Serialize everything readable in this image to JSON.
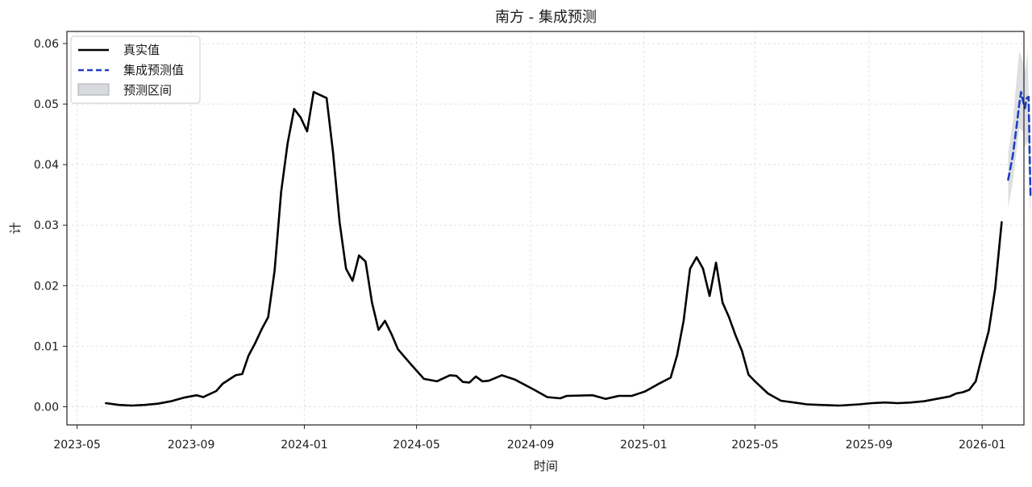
{
  "chart_data": {
    "type": "line",
    "title": "南方 - 集成预测",
    "xlabel": "时间",
    "ylabel": "计",
    "ylim": [
      -0.003,
      0.062
    ],
    "xlim": [
      "2023-04-20",
      "2026-02-15"
    ],
    "grid": true,
    "legend_position": "top-left",
    "y_ticks": [
      {
        "value": 0.0,
        "label": "0.00"
      },
      {
        "value": 0.01,
        "label": "0.01"
      },
      {
        "value": 0.02,
        "label": "0.02"
      },
      {
        "value": 0.03,
        "label": "0.03"
      },
      {
        "value": 0.04,
        "label": "0.04"
      },
      {
        "value": 0.05,
        "label": "0.05"
      },
      {
        "value": 0.06,
        "label": "0.06"
      }
    ],
    "x_ticks": [
      {
        "date": "2023-05-01",
        "label": "2023-05"
      },
      {
        "date": "2023-09-01",
        "label": "2023-09"
      },
      {
        "date": "2024-01-01",
        "label": "2024-01"
      },
      {
        "date": "2024-05-01",
        "label": "2024-05"
      },
      {
        "date": "2024-09-01",
        "label": "2024-09"
      },
      {
        "date": "2025-01-01",
        "label": "2025-01"
      },
      {
        "date": "2025-05-01",
        "label": "2025-05"
      },
      {
        "date": "2025-09-01",
        "label": "2025-09"
      },
      {
        "date": "2026-01-01",
        "label": "2026-01"
      }
    ],
    "series": [
      {
        "name": "真实值",
        "color": "#000000",
        "style": "solid",
        "points": [
          [
            "2023-06-01",
            0.0006
          ],
          [
            "2023-06-15",
            0.0003
          ],
          [
            "2023-06-29",
            0.0002
          ],
          [
            "2023-07-13",
            0.0003
          ],
          [
            "2023-07-27",
            0.0005
          ],
          [
            "2023-08-10",
            0.0009
          ],
          [
            "2023-08-24",
            0.0015
          ],
          [
            "2023-09-07",
            0.0019
          ],
          [
            "2023-09-14",
            0.0016
          ],
          [
            "2023-09-28",
            0.0026
          ],
          [
            "2023-10-05",
            0.0038
          ],
          [
            "2023-10-19",
            0.0052
          ],
          [
            "2023-10-26",
            0.0054
          ],
          [
            "2023-11-02",
            0.0085
          ],
          [
            "2023-11-09",
            0.0105
          ],
          [
            "2023-11-16",
            0.0128
          ],
          [
            "2023-11-23",
            0.0148
          ],
          [
            "2023-11-30",
            0.0225
          ],
          [
            "2023-12-07",
            0.0355
          ],
          [
            "2023-12-14",
            0.0435
          ],
          [
            "2023-12-21",
            0.0492
          ],
          [
            "2023-12-28",
            0.0478
          ],
          [
            "2024-01-04",
            0.0455
          ],
          [
            "2024-01-11",
            0.052
          ],
          [
            "2024-01-18",
            0.0515
          ],
          [
            "2024-01-25",
            0.051
          ],
          [
            "2024-02-01",
            0.042
          ],
          [
            "2024-02-08",
            0.0305
          ],
          [
            "2024-02-15",
            0.0228
          ],
          [
            "2024-02-22",
            0.0208
          ],
          [
            "2024-02-29",
            0.025
          ],
          [
            "2024-03-07",
            0.024
          ],
          [
            "2024-03-14",
            0.0172
          ],
          [
            "2024-03-21",
            0.0127
          ],
          [
            "2024-03-28",
            0.0142
          ],
          [
            "2024-04-04",
            0.012
          ],
          [
            "2024-04-11",
            0.0095
          ],
          [
            "2024-04-25",
            0.007
          ],
          [
            "2024-05-09",
            0.0046
          ],
          [
            "2024-05-23",
            0.0042
          ],
          [
            "2024-06-06",
            0.0052
          ],
          [
            "2024-06-13",
            0.0051
          ],
          [
            "2024-06-20",
            0.0041
          ],
          [
            "2024-06-27",
            0.004
          ],
          [
            "2024-07-04",
            0.005
          ],
          [
            "2024-07-11",
            0.0042
          ],
          [
            "2024-07-18",
            0.0043
          ],
          [
            "2024-08-01",
            0.0052
          ],
          [
            "2024-08-15",
            0.0045
          ],
          [
            "2024-09-05",
            0.0028
          ],
          [
            "2024-09-19",
            0.0016
          ],
          [
            "2024-10-03",
            0.0014
          ],
          [
            "2024-10-10",
            0.0018
          ],
          [
            "2024-11-07",
            0.0019
          ],
          [
            "2024-11-21",
            0.0013
          ],
          [
            "2024-12-05",
            0.0018
          ],
          [
            "2024-12-19",
            0.0018
          ],
          [
            "2025-01-02",
            0.0025
          ],
          [
            "2025-01-16",
            0.0037
          ],
          [
            "2025-01-30",
            0.0048
          ],
          [
            "2025-02-06",
            0.0085
          ],
          [
            "2025-02-13",
            0.0142
          ],
          [
            "2025-02-20",
            0.0228
          ],
          [
            "2025-02-27",
            0.0247
          ],
          [
            "2025-03-06",
            0.0228
          ],
          [
            "2025-03-13",
            0.0183
          ],
          [
            "2025-03-20",
            0.0238
          ],
          [
            "2025-03-27",
            0.0172
          ],
          [
            "2025-04-03",
            0.0148
          ],
          [
            "2025-04-10",
            0.0118
          ],
          [
            "2025-04-17",
            0.0092
          ],
          [
            "2025-04-24",
            0.0053
          ],
          [
            "2025-05-01",
            0.0042
          ],
          [
            "2025-05-15",
            0.0022
          ],
          [
            "2025-05-29",
            0.001
          ],
          [
            "2025-06-12",
            0.0007
          ],
          [
            "2025-06-26",
            0.0004
          ],
          [
            "2025-07-10",
            0.0003
          ],
          [
            "2025-07-31",
            0.0002
          ],
          [
            "2025-08-21",
            0.0004
          ],
          [
            "2025-09-04",
            0.0006
          ],
          [
            "2025-09-18",
            0.0007
          ],
          [
            "2025-10-02",
            0.0006
          ],
          [
            "2025-10-16",
            0.0007
          ],
          [
            "2025-10-30",
            0.0009
          ],
          [
            "2025-11-13",
            0.0013
          ],
          [
            "2025-11-27",
            0.0017
          ],
          [
            "2025-12-04",
            0.0022
          ],
          [
            "2025-12-11",
            0.0024
          ],
          [
            "2025-12-18",
            0.0028
          ],
          [
            "2025-12-25",
            0.0042
          ],
          [
            "2026-01-01",
            0.0085
          ],
          [
            "2026-01-08",
            0.0125
          ],
          [
            "2026-01-15",
            0.0195
          ],
          [
            "2026-01-22",
            0.0305
          ]
        ]
      },
      {
        "name": "集成预测值",
        "color": "#1f3fbf",
        "style": "dashed",
        "points": [
          [
            "2026-01-29",
            0.0375
          ],
          [
            "2026-02-03",
            0.0415
          ],
          [
            "2026-02-07",
            0.0462
          ],
          [
            "2026-02-10",
            0.05
          ],
          [
            "2026-02-12",
            0.052
          ],
          [
            "2026-02-14",
            0.0505
          ],
          [
            "2026-02-16",
            0.0493
          ],
          [
            "2026-02-18",
            0.051
          ],
          [
            "2026-02-20",
            0.0512
          ],
          [
            "2026-02-22",
            0.035
          ]
        ]
      }
    ],
    "band": {
      "name": "预测区间",
      "color": "#c8cacf",
      "points": [
        [
          "2026-01-29",
          0.0328,
          0.042
        ],
        [
          "2026-02-03",
          0.0372,
          0.047
        ],
        [
          "2026-02-07",
          0.0422,
          0.054
        ],
        [
          "2026-02-10",
          0.046,
          0.0588
        ],
        [
          "2026-02-14",
          0.0455,
          0.057
        ],
        [
          "2026-02-16",
          0.0428,
          0.0555
        ],
        [
          "2026-02-19",
          0.0438,
          0.0585
        ],
        [
          "2026-02-22",
          0.0298,
          0.0405
        ]
      ]
    }
  }
}
